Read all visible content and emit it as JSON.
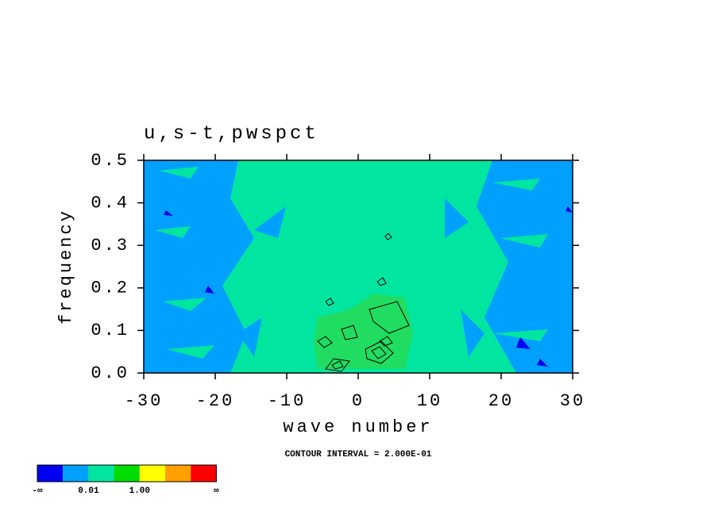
{
  "chart_data": {
    "type": "contour",
    "title": "u,s-t,pwspct",
    "x_label": "wave number",
    "y_label": "frequency",
    "annotation": "CONTOUR INTERVAL = 2.000E-01",
    "xlim": [
      -30,
      30
    ],
    "xticks": [
      -30,
      -20,
      -10,
      0,
      10,
      20,
      30
    ],
    "ylim": [
      0,
      0.5
    ],
    "yticks": [
      {
        "value": 0,
        "label": "0.0"
      },
      0.1,
      0.2,
      0.3,
      0.4,
      0.5
    ],
    "colorbar": {
      "colors": [
        "#0000f0",
        "#00a0ff",
        "#00e6a0",
        "#00dc00",
        "#ffff00",
        "#ffa000",
        "#ff0000"
      ],
      "labels": [
        "-∞",
        "0.01",
        "1.00",
        "∞"
      ]
    }
  }
}
